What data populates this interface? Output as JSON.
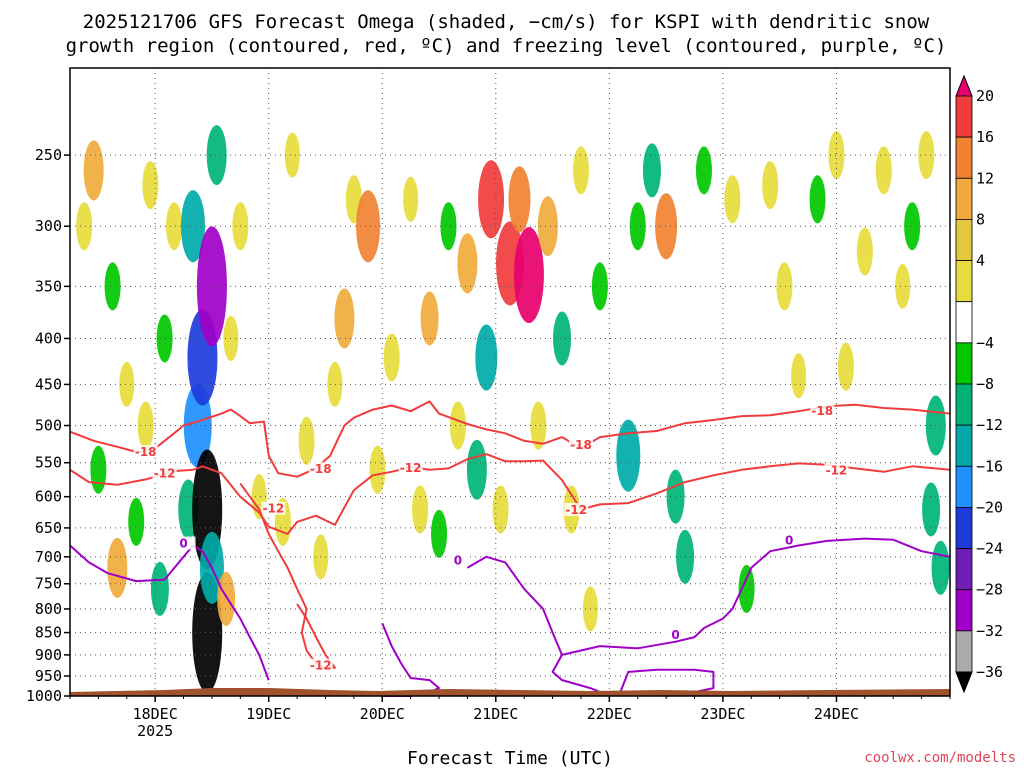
{
  "chart_data": {
    "type": "heatmap",
    "title_lines": [
      "2025121706 GFS Forecast Omega (shaded, −cm/s) for KSPI with dendritic snow",
      "growth region (contoured, red, ºC) and freezing level (contoured, purple, ºC)"
    ],
    "xlabel": "Forecast Time (UTC)",
    "credit": "coolwx.com/modelts",
    "y_axis": {
      "units": "hPa",
      "range": [
        200,
        1000
      ],
      "ticks": [
        250,
        300,
        350,
        400,
        450,
        500,
        550,
        600,
        650,
        700,
        750,
        800,
        850,
        900,
        950,
        1000
      ]
    },
    "x_axis": {
      "range_hours": [
        0,
        186
      ],
      "ticks": [
        {
          "hour": 18,
          "label": "18DEC",
          "sublabel": "2025"
        },
        {
          "hour": 42,
          "label": "19DEC"
        },
        {
          "hour": 66,
          "label": "20DEC"
        },
        {
          "hour": 90,
          "label": "21DEC"
        },
        {
          "hour": 114,
          "label": "22DEC"
        },
        {
          "hour": 138,
          "label": "23DEC"
        },
        {
          "hour": 162,
          "label": "24DEC"
        }
      ]
    },
    "colorbar": {
      "labels": [
        "20",
        "16",
        "12",
        "8",
        "4",
        "−4",
        "−8",
        "−12",
        "−16",
        "−20",
        "−24",
        "−28",
        "−32",
        "−36"
      ],
      "colors": [
        "#e8006e",
        "#f03c3c",
        "#f08232",
        "#f0aa3c",
        "#e6c83c",
        "#e6dc3c",
        "#ffffff",
        "#00c800",
        "#00b478",
        "#00aaaa",
        "#1e90ff",
        "#1e3cdc",
        "#6e1eb4",
        "#a000c8",
        "#aaaaaa",
        "#000000"
      ]
    },
    "omega_cells": [
      {
        "h": 3,
        "p": 300,
        "v": 6
      },
      {
        "h": 5,
        "p": 260,
        "v": 10
      },
      {
        "h": 6,
        "p": 560,
        "v": -6
      },
      {
        "h": 9,
        "p": 350,
        "v": -6
      },
      {
        "h": 10,
        "p": 720,
        "v": 10
      },
      {
        "h": 12,
        "p": 450,
        "v": 5
      },
      {
        "h": 14,
        "p": 640,
        "v": -6
      },
      {
        "h": 16,
        "p": 500,
        "v": 6
      },
      {
        "h": 17,
        "p": 270,
        "v": 6
      },
      {
        "h": 19,
        "p": 760,
        "v": -8
      },
      {
        "h": 20,
        "p": 400,
        "v": -6
      },
      {
        "h": 22,
        "p": 300,
        "v": 6
      },
      {
        "h": 25,
        "p": 620,
        "v": -10
      },
      {
        "h": 26,
        "p": 300,
        "v": -14
      },
      {
        "h": 27,
        "p": 500,
        "v": -18
      },
      {
        "h": 28,
        "p": 420,
        "v": -22
      },
      {
        "h": 29,
        "p": 620,
        "v": -36
      },
      {
        "h": 29,
        "p": 850,
        "v": -36
      },
      {
        "h": 30,
        "p": 350,
        "v": -30
      },
      {
        "h": 30,
        "p": 720,
        "v": -14
      },
      {
        "h": 31,
        "p": 250,
        "v": -10
      },
      {
        "h": 33,
        "p": 780,
        "v": 8
      },
      {
        "h": 34,
        "p": 400,
        "v": 5
      },
      {
        "h": 36,
        "p": 300,
        "v": 6
      },
      {
        "h": 40,
        "p": 600,
        "v": 5
      },
      {
        "h": 45,
        "p": 640,
        "v": 6
      },
      {
        "h": 47,
        "p": 250,
        "v": 5
      },
      {
        "h": 50,
        "p": 520,
        "v": 6
      },
      {
        "h": 53,
        "p": 700,
        "v": 5
      },
      {
        "h": 56,
        "p": 450,
        "v": 5
      },
      {
        "h": 58,
        "p": 380,
        "v": 10
      },
      {
        "h": 60,
        "p": 280,
        "v": 6
      },
      {
        "h": 63,
        "p": 300,
        "v": 14
      },
      {
        "h": 65,
        "p": 560,
        "v": 6
      },
      {
        "h": 68,
        "p": 420,
        "v": 6
      },
      {
        "h": 72,
        "p": 280,
        "v": 5
      },
      {
        "h": 74,
        "p": 620,
        "v": 6
      },
      {
        "h": 76,
        "p": 380,
        "v": 8
      },
      {
        "h": 78,
        "p": 660,
        "v": -6
      },
      {
        "h": 80,
        "p": 300,
        "v": -6
      },
      {
        "h": 82,
        "p": 500,
        "v": 6
      },
      {
        "h": 84,
        "p": 330,
        "v": 10
      },
      {
        "h": 86,
        "p": 560,
        "v": -10
      },
      {
        "h": 88,
        "p": 420,
        "v": -12
      },
      {
        "h": 89,
        "p": 280,
        "v": 16
      },
      {
        "h": 91,
        "p": 620,
        "v": 6
      },
      {
        "h": 93,
        "p": 330,
        "v": 18
      },
      {
        "h": 95,
        "p": 280,
        "v": 12
      },
      {
        "h": 97,
        "p": 340,
        "v": 22
      },
      {
        "h": 99,
        "p": 500,
        "v": 6
      },
      {
        "h": 101,
        "p": 300,
        "v": 10
      },
      {
        "h": 104,
        "p": 400,
        "v": -8
      },
      {
        "h": 106,
        "p": 620,
        "v": 6
      },
      {
        "h": 108,
        "p": 260,
        "v": 6
      },
      {
        "h": 110,
        "p": 800,
        "v": 5
      },
      {
        "h": 112,
        "p": 350,
        "v": -6
      },
      {
        "h": 118,
        "p": 540,
        "v": -14
      },
      {
        "h": 120,
        "p": 300,
        "v": -6
      },
      {
        "h": 123,
        "p": 260,
        "v": -8
      },
      {
        "h": 126,
        "p": 300,
        "v": 12
      },
      {
        "h": 128,
        "p": 600,
        "v": -8
      },
      {
        "h": 130,
        "p": 700,
        "v": -8
      },
      {
        "h": 134,
        "p": 260,
        "v": -6
      },
      {
        "h": 140,
        "p": 280,
        "v": 6
      },
      {
        "h": 143,
        "p": 760,
        "v": -6
      },
      {
        "h": 148,
        "p": 270,
        "v": 6
      },
      {
        "h": 151,
        "p": 350,
        "v": 6
      },
      {
        "h": 154,
        "p": 440,
        "v": 5
      },
      {
        "h": 158,
        "p": 280,
        "v": -6
      },
      {
        "h": 162,
        "p": 250,
        "v": 6
      },
      {
        "h": 164,
        "p": 430,
        "v": 6
      },
      {
        "h": 168,
        "p": 320,
        "v": 6
      },
      {
        "h": 172,
        "p": 260,
        "v": 6
      },
      {
        "h": 176,
        "p": 350,
        "v": 5
      },
      {
        "h": 178,
        "p": 300,
        "v": -6
      },
      {
        "h": 181,
        "p": 250,
        "v": 6
      },
      {
        "h": 182,
        "p": 620,
        "v": -8
      },
      {
        "h": 183,
        "p": 500,
        "v": -10
      },
      {
        "h": 184,
        "p": 720,
        "v": -8
      }
    ],
    "contours": [
      {
        "name": "dgz-minus-18",
        "color": "#f03c3c",
        "label": "-18",
        "label_at": [
          {
            "h": 16,
            "p": 538
          },
          {
            "h": 53,
            "p": 562
          },
          {
            "h": 108,
            "p": 528
          },
          {
            "h": 159,
            "p": 484
          }
        ],
        "points": [
          [
            0,
            508
          ],
          [
            5,
            520
          ],
          [
            10,
            528
          ],
          [
            14,
            535
          ],
          [
            18,
            530
          ],
          [
            22,
            510
          ],
          [
            24,
            500
          ],
          [
            28,
            493
          ],
          [
            32,
            485
          ],
          [
            34,
            480
          ],
          [
            36,
            488
          ],
          [
            38,
            497
          ],
          [
            41,
            495
          ],
          [
            42,
            540
          ],
          [
            44,
            565
          ],
          [
            48,
            570
          ],
          [
            52,
            558
          ],
          [
            55,
            540
          ],
          [
            58,
            500
          ],
          [
            60,
            490
          ],
          [
            64,
            480
          ],
          [
            68,
            475
          ],
          [
            72,
            482
          ],
          [
            76,
            470
          ],
          [
            78,
            485
          ],
          [
            84,
            498
          ],
          [
            88,
            505
          ],
          [
            92,
            510
          ],
          [
            96,
            520
          ],
          [
            100,
            524
          ],
          [
            104,
            515
          ],
          [
            108,
            530
          ],
          [
            112,
            515
          ],
          [
            118,
            510
          ],
          [
            124,
            507
          ],
          [
            130,
            497
          ],
          [
            136,
            493
          ],
          [
            142,
            488
          ],
          [
            148,
            487
          ],
          [
            154,
            482
          ],
          [
            160,
            476
          ],
          [
            166,
            474
          ],
          [
            172,
            478
          ],
          [
            178,
            480
          ],
          [
            186,
            485
          ]
        ]
      },
      {
        "name": "dgz-minus-12",
        "color": "#f03c3c",
        "label": "-12",
        "label_at": [
          {
            "h": 20,
            "p": 568
          },
          {
            "h": 43,
            "p": 622
          },
          {
            "h": 72,
            "p": 560
          },
          {
            "h": 107,
            "p": 624
          },
          {
            "h": 162,
            "p": 564
          }
        ],
        "points": [
          [
            0,
            560
          ],
          [
            4,
            578
          ],
          [
            10,
            582
          ],
          [
            16,
            574
          ],
          [
            22,
            562
          ],
          [
            26,
            560
          ],
          [
            28,
            555
          ],
          [
            32,
            565
          ],
          [
            36,
            600
          ],
          [
            40,
            625
          ],
          [
            42,
            648
          ],
          [
            46,
            660
          ],
          [
            48,
            640
          ],
          [
            52,
            630
          ],
          [
            56,
            645
          ],
          [
            60,
            590
          ],
          [
            64,
            568
          ],
          [
            68,
            563
          ],
          [
            72,
            556
          ],
          [
            76,
            560
          ],
          [
            80,
            558
          ],
          [
            84,
            545
          ],
          [
            88,
            538
          ],
          [
            92,
            548
          ],
          [
            96,
            548
          ],
          [
            100,
            547
          ],
          [
            104,
            575
          ],
          [
            108,
            620
          ],
          [
            112,
            612
          ],
          [
            118,
            610
          ],
          [
            124,
            595
          ],
          [
            130,
            578
          ],
          [
            136,
            568
          ],
          [
            142,
            560
          ],
          [
            148,
            555
          ],
          [
            154,
            551
          ],
          [
            160,
            553
          ],
          [
            166,
            558
          ],
          [
            172,
            563
          ],
          [
            178,
            555
          ],
          [
            186,
            560
          ]
        ]
      },
      {
        "name": "dgz-minus-12-lower",
        "color": "#f03c3c",
        "label": "-12",
        "label_at": [
          {
            "h": 53,
            "p": 930
          }
        ],
        "points": [
          [
            36,
            580
          ],
          [
            40,
            620
          ],
          [
            42,
            660
          ],
          [
            44,
            690
          ],
          [
            46,
            720
          ],
          [
            48,
            760
          ],
          [
            50,
            800
          ],
          [
            49,
            850
          ],
          [
            50,
            890
          ],
          [
            52,
            920
          ],
          [
            54,
            930
          ],
          [
            56,
            930
          ],
          [
            54,
            900
          ],
          [
            52,
            860
          ],
          [
            50,
            820
          ],
          [
            48,
            790
          ]
        ]
      },
      {
        "name": "freezing-level-0",
        "color": "#a000c8",
        "label": "0",
        "label_at": [
          {
            "h": 24,
            "p": 680
          },
          {
            "h": 82,
            "p": 710
          },
          {
            "h": 128,
            "p": 860
          },
          {
            "h": 152,
            "p": 675
          }
        ],
        "points": [
          [
            0,
            680
          ],
          [
            4,
            710
          ],
          [
            8,
            730
          ],
          [
            14,
            745
          ],
          [
            20,
            742
          ],
          [
            24,
            700
          ],
          [
            26,
            680
          ],
          [
            28,
            690
          ],
          [
            30,
            720
          ],
          [
            32,
            760
          ],
          [
            34,
            790
          ],
          [
            36,
            820
          ],
          [
            38,
            860
          ],
          [
            40,
            900
          ],
          [
            42,
            960
          ]
        ]
      },
      {
        "name": "freezing-level-0-mid",
        "color": "#a000c8",
        "label": "0",
        "label_at": [],
        "points": [
          [
            66,
            830
          ],
          [
            68,
            880
          ],
          [
            70,
            920
          ],
          [
            72,
            955
          ],
          [
            76,
            960
          ],
          [
            78,
            980
          ],
          [
            76,
            990
          ],
          [
            72,
            1000
          ],
          [
            66,
            1000
          ]
        ]
      },
      {
        "name": "freezing-level-0-east",
        "color": "#a000c8",
        "label": "0",
        "label_at": [],
        "points": [
          [
            84,
            720
          ],
          [
            88,
            700
          ],
          [
            92,
            710
          ],
          [
            96,
            760
          ],
          [
            100,
            800
          ],
          [
            102,
            850
          ],
          [
            104,
            900
          ],
          [
            102,
            940
          ],
          [
            104,
            960
          ],
          [
            110,
            980
          ],
          [
            114,
            1000
          ]
        ]
      },
      {
        "name": "freezing-level-0-far",
        "color": "#a000c8",
        "label": "0",
        "label_at": [],
        "points": [
          [
            104,
            900
          ],
          [
            112,
            880
          ],
          [
            120,
            885
          ],
          [
            128,
            870
          ],
          [
            132,
            860
          ],
          [
            134,
            840
          ],
          [
            138,
            820
          ],
          [
            140,
            800
          ],
          [
            142,
            760
          ],
          [
            144,
            720
          ],
          [
            148,
            690
          ],
          [
            154,
            680
          ],
          [
            160,
            672
          ],
          [
            168,
            668
          ],
          [
            174,
            670
          ],
          [
            180,
            690
          ],
          [
            186,
            700
          ]
        ]
      },
      {
        "name": "freezing-level-0-low",
        "color": "#a000c8",
        "label": "0",
        "label_at": [],
        "points": [
          [
            116,
            1000
          ],
          [
            118,
            940
          ],
          [
            124,
            935
          ],
          [
            132,
            935
          ],
          [
            136,
            940
          ],
          [
            136,
            980
          ],
          [
            132,
            990
          ],
          [
            126,
            1000
          ]
        ]
      }
    ]
  }
}
